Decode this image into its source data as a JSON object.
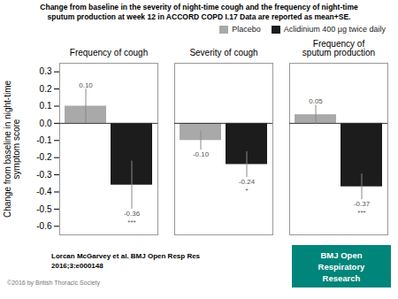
{
  "chart_data": {
    "type": "bar",
    "title": "Change from baseline in the severity of night-time cough and the frequency of night-time\nsputum production at week 12 in ACCORD COPD I.17 Data are reported as mean+SE.",
    "ylabel": "Change from baseline in night-time\nsymptom score",
    "categories": [
      "Frequency of cough",
      "Severity of cough",
      "Frequency of\nsputum production"
    ],
    "series": [
      {
        "name": "Placebo",
        "color": "#a9a9a9",
        "values": [
          0.1,
          -0.1,
          0.05
        ],
        "value_labels": [
          "0.10",
          "-0.10",
          "0.05"
        ],
        "errors": [
          0.1,
          0.055,
          0.055
        ]
      },
      {
        "name": "Aclidinium 400 μg twice daily",
        "color": "#1c1c1c",
        "values": [
          -0.36,
          -0.24,
          -0.37
        ],
        "value_labels": [
          "-0.36",
          "-0.24",
          "-0.37"
        ],
        "errors": [
          0.14,
          0.075,
          0.075
        ],
        "annotations": [
          "***",
          "*",
          "***"
        ]
      }
    ],
    "ylim": [
      -0.65,
      0.35
    ],
    "yticks": [
      -0.6,
      -0.5,
      -0.4,
      -0.3,
      -0.2,
      -0.1,
      {
        "value": 0,
        "label": "0.0"
      },
      0.1,
      0.2,
      0.3
    ],
    "data_labels": true,
    "grid": false,
    "legend": "upper right",
    "annotations": [
      {
        "text": "Lorcan McGarvey et al. BMJ Open Resp Res"
      },
      {
        "text": "2016;3:e000148"
      },
      {
        "text": "©2016 by British Thoracic Society"
      },
      {
        "text": "BMJ Open\nRespiratory\nResearch",
        "color": "#00857a"
      }
    ]
  }
}
